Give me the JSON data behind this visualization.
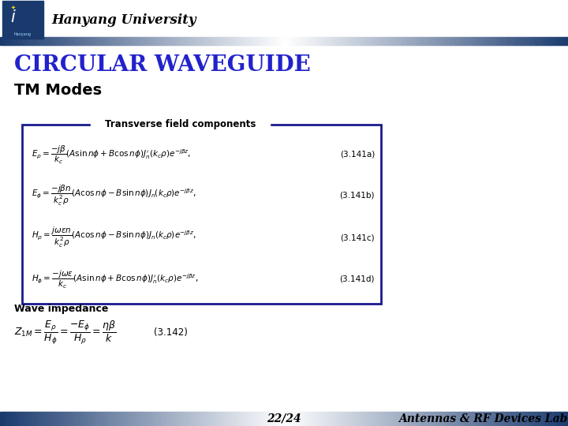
{
  "title": "CIRCULAR WAVEGUIDE",
  "subtitle": "TM Modes",
  "header_text": "Hanyang University",
  "page_number": "22/24",
  "footer_text": "Antennas & RF Devices Lab.",
  "box_label": "Transverse field components",
  "eq1_num": "(3.141a)",
  "eq2_num": "(3.141b)",
  "eq3_num": "(3.141c)",
  "eq4_num": "(3.141d)",
  "wave_label": "Wave impedance",
  "wave_num": "(3.142)",
  "title_color": "#2222cc",
  "subtitle_color": "#000000",
  "box_border_color": "#1a1a8c",
  "bg_color": "#ffffff",
  "header_logo_bg": "#1a3a6e",
  "bar_dark": "#1a3a6e",
  "eq_fontsize": 7.5,
  "wave_fontsize": 9.0,
  "title_fontsize": 20,
  "subtitle_fontsize": 14
}
